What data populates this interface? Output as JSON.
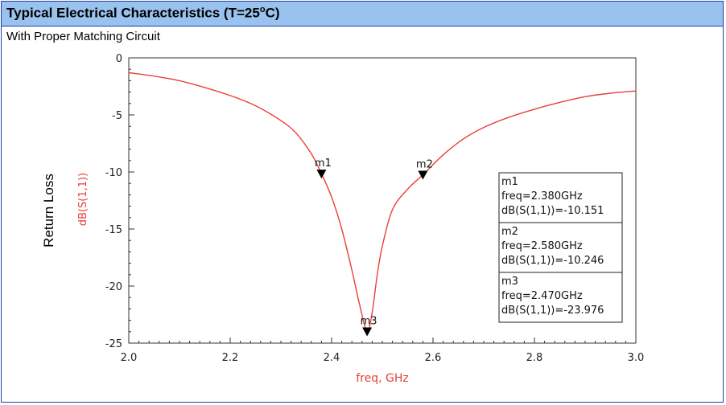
{
  "header": {
    "title_main": "Typical Electrical Characteristics (T=25",
    "title_sup": "o",
    "title_end": "C)",
    "subtitle": "With Proper Matching Circuit"
  },
  "chart_data": {
    "type": "line",
    "xlabel": "freq, GHz",
    "ylabel": "dB(S(1,1))",
    "outer_ylabel": "Return Loss",
    "xlim": [
      2.0,
      3.0
    ],
    "ylim": [
      -25,
      0
    ],
    "x_ticks": [
      "2.0",
      "2.2",
      "2.4",
      "2.6",
      "2.8",
      "3.0"
    ],
    "y_ticks": [
      "0",
      "-5",
      "-10",
      "-15",
      "-20",
      "-25"
    ],
    "grid": false,
    "line_color": "#e8403a",
    "series": [
      {
        "x": [
          2.0,
          2.05,
          2.1,
          2.15,
          2.2,
          2.25,
          2.3,
          2.33,
          2.36,
          2.38,
          2.4,
          2.42,
          2.44,
          2.455,
          2.47,
          2.48,
          2.49,
          2.5,
          2.52,
          2.55,
          2.58,
          2.62,
          2.66,
          2.7,
          2.75,
          2.8,
          2.85,
          2.9,
          2.95,
          3.0
        ],
        "y": [
          -1.3,
          -1.6,
          -2.0,
          -2.6,
          -3.3,
          -4.2,
          -5.5,
          -6.6,
          -8.4,
          -10.151,
          -12.2,
          -15.0,
          -18.6,
          -21.6,
          -23.976,
          -22.3,
          -19.0,
          -16.5,
          -13.3,
          -11.5,
          -10.246,
          -8.5,
          -7.1,
          -6.1,
          -5.2,
          -4.5,
          -3.9,
          -3.4,
          -3.1,
          -2.9
        ]
      }
    ],
    "markers": [
      {
        "name": "m1",
        "x": 2.38,
        "y": -10.151,
        "freq": "freq=2.380GHz",
        "db": "dB(S(1,1))=-10.151"
      },
      {
        "name": "m2",
        "x": 2.58,
        "y": -10.246,
        "freq": "freq=2.580GHz",
        "db": "dB(S(1,1))=-10.246"
      },
      {
        "name": "m3",
        "x": 2.47,
        "y": -23.976,
        "freq": "freq=2.470GHz",
        "db": "dB(S(1,1))=-23.976"
      }
    ]
  }
}
